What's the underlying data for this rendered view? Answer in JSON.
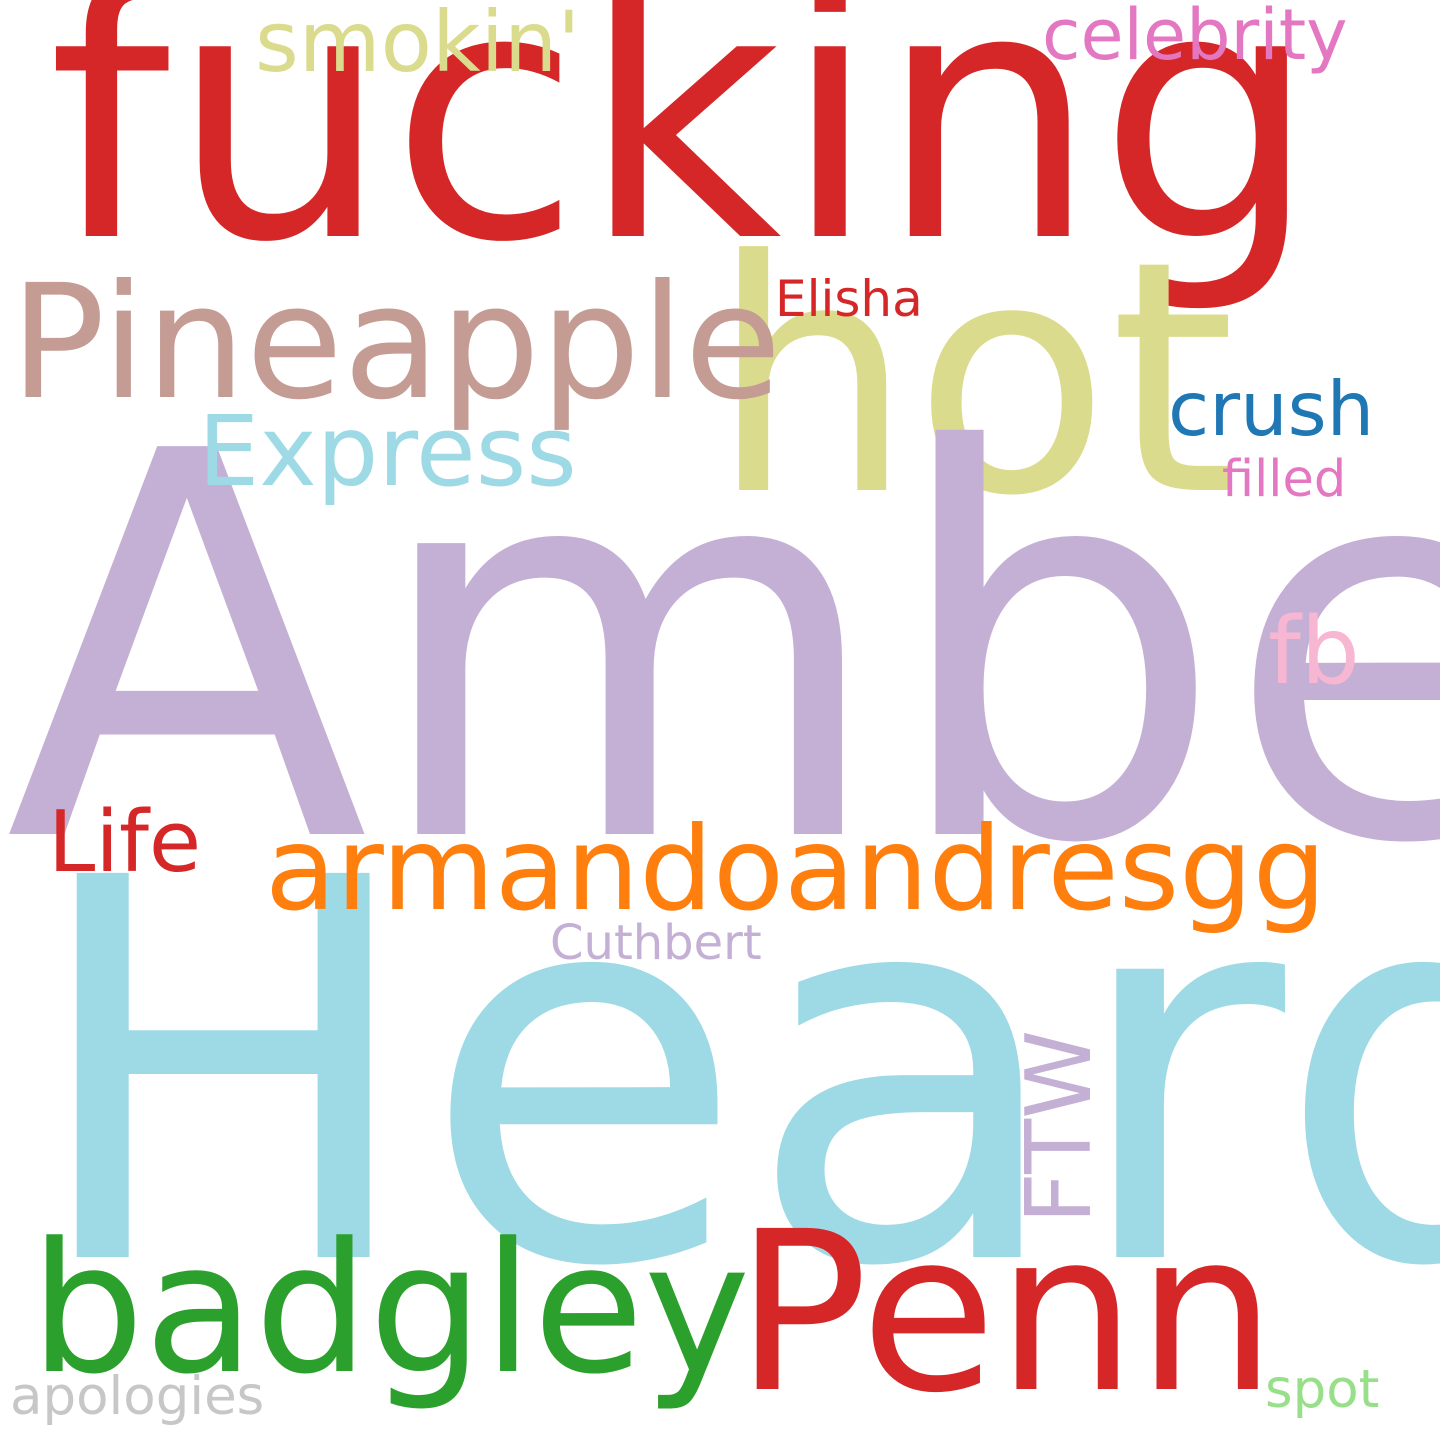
{
  "words": [
    {
      "text": "fucking",
      "color": "#d62728"
    },
    {
      "text": "hot",
      "color": "#dbdb8d"
    },
    {
      "text": "Amber",
      "color": "#c5b0d5"
    },
    {
      "text": "Heard",
      "color": "#9edae5"
    },
    {
      "text": "Pineapple",
      "color": "#c49c94"
    },
    {
      "text": "Express",
      "color": "#9edae5"
    },
    {
      "text": "armandoandresgg",
      "color": "#ff7f0e"
    },
    {
      "text": "badgley",
      "color": "#2ca02c"
    },
    {
      "text": "Penn",
      "color": "#d62728"
    },
    {
      "text": "smokin'",
      "color": "#dbdb8d"
    },
    {
      "text": "celebrity",
      "color": "#e377c2"
    },
    {
      "text": "Elisha",
      "color": "#d62728"
    },
    {
      "text": "crush",
      "color": "#1f77b4"
    },
    {
      "text": "filled",
      "color": "#e377c2"
    },
    {
      "text": "fb",
      "color": "#f7b6d2"
    },
    {
      "text": "Life",
      "color": "#d62728"
    },
    {
      "text": "Cuthbert",
      "color": "#c5b0d5"
    },
    {
      "text": "FTW",
      "color": "#c5b0d5"
    },
    {
      "text": "apologies",
      "color": "#c7c7c7"
    },
    {
      "text": "spot",
      "color": "#98df8a"
    }
  ]
}
